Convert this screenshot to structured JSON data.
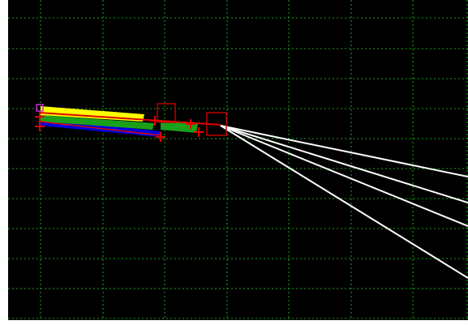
{
  "canvas": {
    "background_color": "#000000",
    "frame_color": "#ffffff",
    "grid": {
      "visible": true,
      "color": "#1fa31f",
      "style": "dotted"
    }
  },
  "colors": {
    "marker_red": "#e00000",
    "selection_box_red": "#c00000",
    "bar_yellow": "#ffff00",
    "bar_green": "#1aa01a",
    "bar_blue": "#0000e0",
    "handle_magenta": "#cc33cc",
    "ray_white": "#ffffff"
  },
  "scene": {
    "bars": [
      {
        "name": "yellow-bar",
        "color": "#ffff00"
      },
      {
        "name": "green-bar",
        "color": "#1aa01a"
      },
      {
        "name": "green-bar-tail",
        "color": "#1aa01a"
      },
      {
        "name": "blue-bar",
        "color": "#0000e0"
      }
    ],
    "ray_count": 4,
    "marker_count": 6,
    "selection_box_count": 2,
    "handle_count": 1
  }
}
